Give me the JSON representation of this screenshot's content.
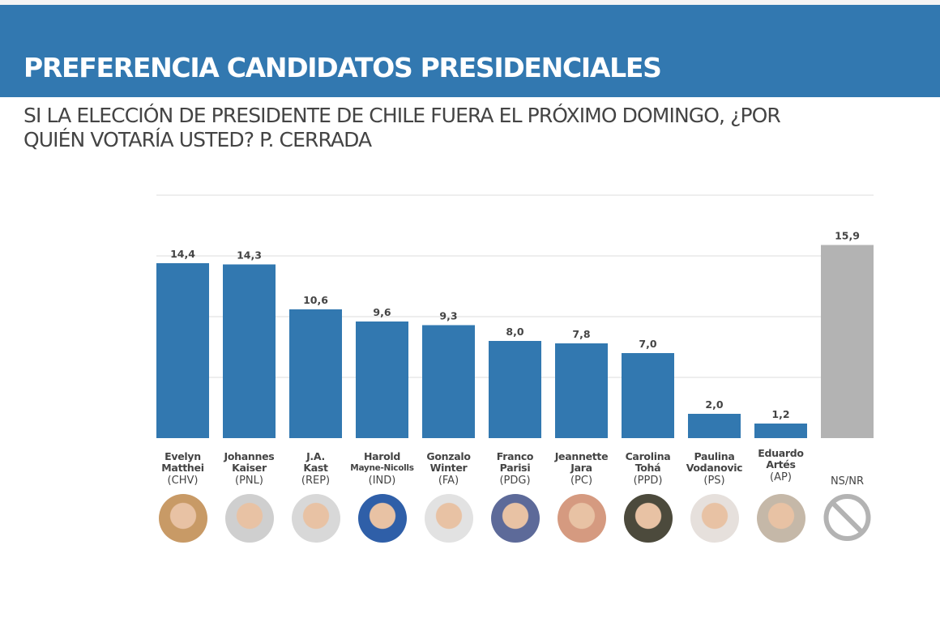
{
  "title": "PREFERENCIA CANDIDATOS PRESIDENCIALES",
  "subtitle": "SI LA ELECCIÓN DE PRESIDENTE DE CHILE FUERA EL PRÓXIMO DOMINGO, ¿POR QUIÉN VOTARÍA USTED? P. CERRADA",
  "colors": {
    "bar": "#3278b0",
    "nsnr": "#b3b3b3",
    "banner": "#3278b0"
  },
  "chart_data": {
    "type": "bar",
    "ylim": [
      0,
      20
    ],
    "grid": true,
    "categories": [
      {
        "first": "Evelyn",
        "last": "Matthei",
        "party": "(CHV)",
        "value": 14.4,
        "label": "14,4"
      },
      {
        "first": "Johannes",
        "last": "Kaiser",
        "party": "(PNL)",
        "value": 14.3,
        "label": "14,3"
      },
      {
        "first": "J.A.",
        "last": "Kast",
        "party": "(REP)",
        "value": 10.6,
        "label": "10,6"
      },
      {
        "first": "Harold",
        "last": "Mayne-Nicolls",
        "party": "(IND)",
        "value": 9.6,
        "label": "9,6"
      },
      {
        "first": "Gonzalo",
        "last": "Winter",
        "party": "(FA)",
        "value": 9.3,
        "label": "9,3"
      },
      {
        "first": "Franco",
        "last": "Parisi",
        "party": "(PDG)",
        "value": 8.0,
        "label": "8,0"
      },
      {
        "first": "Jeannette",
        "last": "Jara",
        "party": "(PC)",
        "value": 7.8,
        "label": "7,8"
      },
      {
        "first": "Carolina",
        "last": "Tohá",
        "party": "(PPD)",
        "value": 7.0,
        "label": "7,0"
      },
      {
        "first": "Paulina",
        "last": "Vodanovic",
        "party": "(PS)",
        "value": 2.0,
        "label": "2,0"
      },
      {
        "first": "Eduardo",
        "last": "Artés",
        "party": "(AP)",
        "value": 1.2,
        "label": "1,2"
      },
      {
        "first": "",
        "last": "",
        "party": "NS/NR",
        "value": 15.9,
        "label": "15,9"
      }
    ]
  }
}
